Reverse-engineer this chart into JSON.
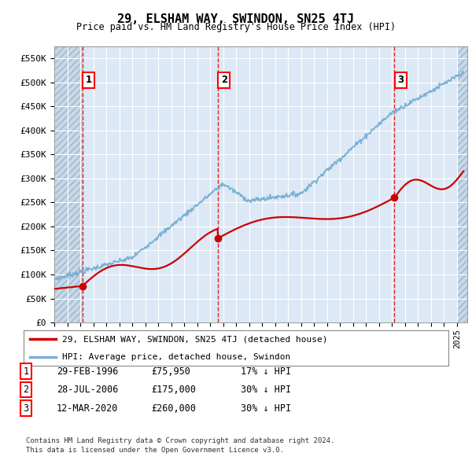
{
  "title": "29, ELSHAM WAY, SWINDON, SN25 4TJ",
  "subtitle": "Price paid vs. HM Land Registry's House Price Index (HPI)",
  "ylim": [
    0,
    575000
  ],
  "yticks": [
    0,
    50000,
    100000,
    150000,
    200000,
    250000,
    300000,
    350000,
    400000,
    450000,
    500000,
    550000
  ],
  "ytick_labels": [
    "£0",
    "£50K",
    "£100K",
    "£150K",
    "£200K",
    "£250K",
    "£300K",
    "£350K",
    "£400K",
    "£450K",
    "£500K",
    "£550K"
  ],
  "hpi_color": "#7ab0d4",
  "price_color": "#cc0000",
  "vline_color": "#dd0000",
  "bg_color": "#dce8f5",
  "hatch_bg_color": "#c8d8e8",
  "transactions": [
    {
      "date_num": 1996.16,
      "price": 75950,
      "label": "1"
    },
    {
      "date_num": 2006.57,
      "price": 175000,
      "label": "2"
    },
    {
      "date_num": 2020.19,
      "price": 260000,
      "label": "3"
    }
  ],
  "legend_entries": [
    "29, ELSHAM WAY, SWINDON, SN25 4TJ (detached house)",
    "HPI: Average price, detached house, Swindon"
  ],
  "table_rows": [
    {
      "num": "1",
      "date": "29-FEB-1996",
      "price": "£75,950",
      "hpi": "17% ↓ HPI"
    },
    {
      "num": "2",
      "date": "28-JUL-2006",
      "price": "£175,000",
      "hpi": "30% ↓ HPI"
    },
    {
      "num": "3",
      "date": "12-MAR-2020",
      "price": "£260,000",
      "hpi": "30% ↓ HPI"
    }
  ],
  "footer": "Contains HM Land Registry data © Crown copyright and database right 2024.\nThis data is licensed under the Open Government Licence v3.0.",
  "xmin": 1994.0,
  "xmax": 2025.8,
  "hatch_left_end": 1996.16,
  "hatch_right_start": 2025.0
}
